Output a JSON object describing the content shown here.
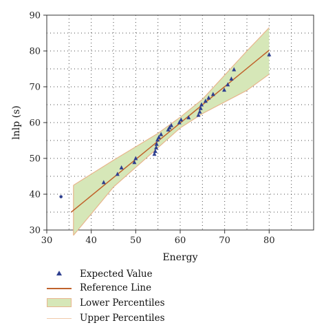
{
  "chart_data": {
    "type": "scatter",
    "xlabel": "Energy",
    "ylabel": "lnlp (s)",
    "xlim": [
      30,
      90
    ],
    "ylim": [
      30,
      90
    ],
    "xticks": [
      30,
      40,
      50,
      60,
      70,
      80
    ],
    "yticks": [
      30,
      40,
      50,
      60,
      70,
      80,
      90
    ],
    "grid": true,
    "legend_position": "bottom",
    "colors": {
      "marker": "#2e3f8f",
      "reference_line": "#c0622b",
      "band_fill": "#d6e7b8",
      "band_edge": "#e8b58c"
    },
    "series": [
      {
        "name": "Expected Value",
        "kind": "marker",
        "x": [
          42.8,
          45.9,
          46.8,
          49.7,
          50.0,
          54.2,
          54.4,
          54.6,
          54.7,
          54.9,
          55.2,
          55.7,
          57.3,
          57.6,
          58.0,
          59.8,
          60.2,
          61.9,
          64.1,
          64.4,
          64.6,
          64.8,
          65.7,
          66.4,
          67.4,
          69.9,
          70.7,
          71.5,
          72.1,
          80.0
        ],
        "y": [
          43.3,
          45.6,
          47.4,
          48.9,
          50.0,
          51.2,
          52.0,
          53.0,
          54.0,
          55.2,
          55.9,
          56.7,
          58.0,
          58.6,
          59.2,
          60.0,
          60.8,
          61.4,
          62.1,
          63.0,
          64.0,
          65.0,
          66.0,
          66.9,
          67.9,
          69.1,
          70.6,
          72.2,
          74.8,
          79.0
        ]
      },
      {
        "name": "Reference Line",
        "kind": "line",
        "x": [
          35.5,
          80.0
        ],
        "y": [
          35.0,
          80.2
        ]
      },
      {
        "name": "Lower Percentiles",
        "kind": "band",
        "x": [
          36.0,
          45.0,
          55.0,
          60.0,
          65.0,
          75.0,
          80.0
        ],
        "y_lower": [
          28.5,
          42.0,
          53.0,
          58.5,
          62.5,
          69.0,
          73.5
        ],
        "y_upper": [
          42.5,
          49.5,
          57.0,
          61.5,
          66.5,
          80.0,
          86.5
        ]
      },
      {
        "name": "Upper Percentiles",
        "kind": "band-edge"
      }
    ],
    "outlier": {
      "x": 33.2,
      "y": 39.3
    }
  }
}
